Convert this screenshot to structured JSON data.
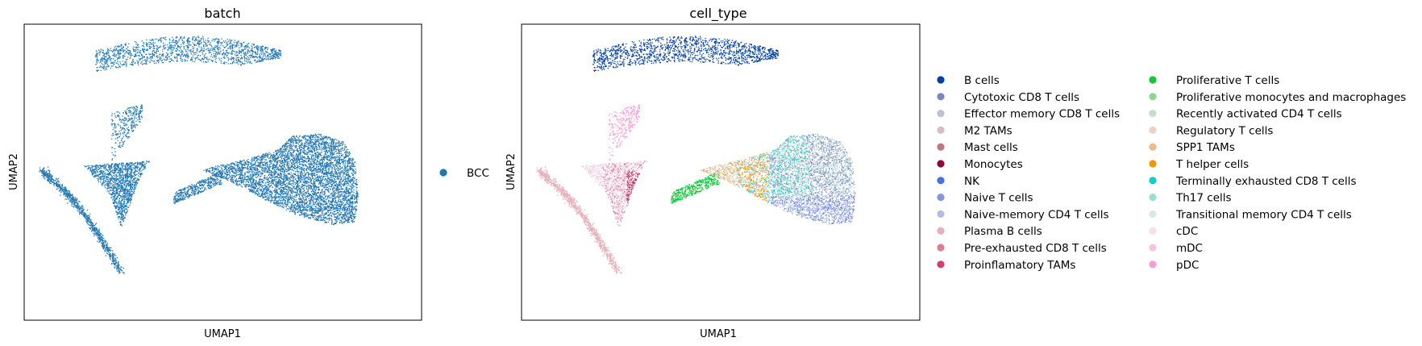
{
  "chart_data": [
    {
      "type": "scatter",
      "title": "batch",
      "xlabel": "UMAP1",
      "ylabel": "UMAP2",
      "ticks": "none",
      "grid": false,
      "legend": {
        "placement": "right",
        "columns": 1,
        "entries": [
          {
            "name": "BCC",
            "color": "#1f77b4"
          }
        ]
      },
      "color_by": "batch"
    },
    {
      "type": "scatter",
      "title": "cell_type",
      "xlabel": "UMAP1",
      "ylabel": "UMAP2",
      "ticks": "none",
      "grid": false,
      "legend": {
        "placement": "right",
        "columns": 2,
        "entries": [
          {
            "name": "B cells",
            "color": "#023fa5"
          },
          {
            "name": "Cytotoxic CD8 T cells",
            "color": "#7d87b9"
          },
          {
            "name": "Effector memory CD8 T cells",
            "color": "#bec1d4"
          },
          {
            "name": "M2 TAMs",
            "color": "#d6bcc0"
          },
          {
            "name": "Mast cells",
            "color": "#bb7784"
          },
          {
            "name": "Monocytes",
            "color": "#8e063b"
          },
          {
            "name": "NK",
            "color": "#4a6fe3"
          },
          {
            "name": "Naive T cells",
            "color": "#8595e1"
          },
          {
            "name": "Naive-memory CD4 T cells",
            "color": "#b5bbe3"
          },
          {
            "name": "Plasma B cells",
            "color": "#e6afb9"
          },
          {
            "name": "Pre-exhausted CD8 T cells",
            "color": "#e07b91"
          },
          {
            "name": "Proinflamatory TAMs",
            "color": "#d33f6a"
          },
          {
            "name": "Proliferative T cells",
            "color": "#11c638"
          },
          {
            "name": "Proliferative monocytes and macrophages",
            "color": "#8dd593"
          },
          {
            "name": "Recently activated CD4 T cells",
            "color": "#c6dec7"
          },
          {
            "name": "Regulatory T cells",
            "color": "#ead3c6"
          },
          {
            "name": "SPP1 TAMs",
            "color": "#f0b98d"
          },
          {
            "name": "T helper cells",
            "color": "#ef9708"
          },
          {
            "name": "Terminally exhausted CD8 T cells",
            "color": "#0fcfc0"
          },
          {
            "name": "Th17 cells",
            "color": "#9cded6"
          },
          {
            "name": "Transitional memory CD4 T cells",
            "color": "#d5eae7"
          },
          {
            "name": "cDC",
            "color": "#f3e1eb"
          },
          {
            "name": "mDC",
            "color": "#f6c4e1"
          },
          {
            "name": "pDC",
            "color": "#f79cd4"
          }
        ]
      },
      "color_by": "cell_type"
    }
  ]
}
